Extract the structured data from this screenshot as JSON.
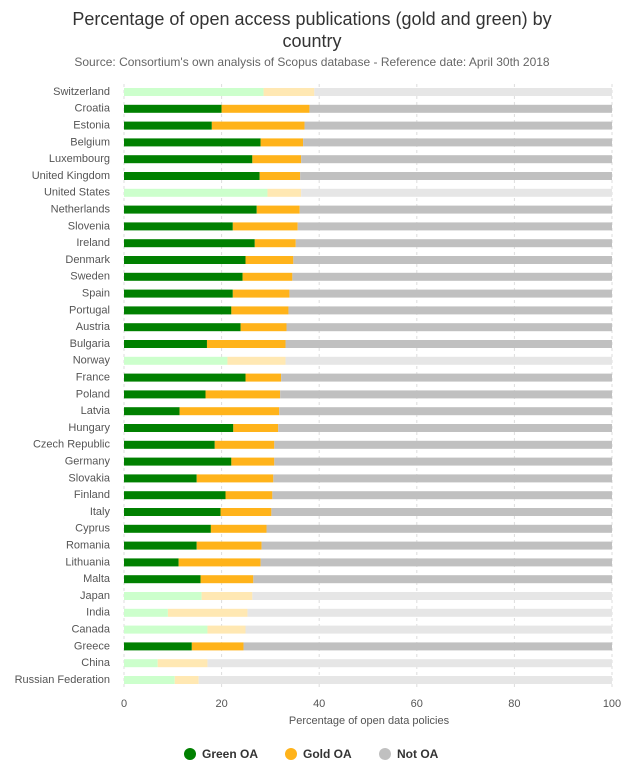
{
  "chart_data": {
    "type": "stacked-bar-horizontal",
    "title": "Percentage of open access publications (gold and green) by country",
    "subtitle": "Source: Consortium's own analysis of Scopus database - Reference date: April 30th 2018",
    "x_label": "Percentage of open data policies",
    "categories": [
      "Switzerland",
      "Croatia",
      "Estonia",
      "Belgium",
      "Luxembourg",
      "United Kingdom",
      "United States",
      "Netherlands",
      "Slovenia",
      "Ireland",
      "Denmark",
      "Sweden",
      "Spain",
      "Portugal",
      "Austria",
      "Bulgaria",
      "Norway",
      "France",
      "Poland",
      "Latvia",
      "Hungary",
      "Czech Republic",
      "Germany",
      "Slovakia",
      "Finland",
      "Italy",
      "Cyprus",
      "Romania",
      "Lithuania",
      "Malta",
      "Japan",
      "India",
      "Canada",
      "Greece",
      "China",
      "Russian Federation"
    ],
    "series": [
      {
        "name": "Green OA",
        "color": "#008000",
        "values": [
          28.6,
          20.0,
          18.0,
          28.0,
          26.3,
          27.8,
          29.4,
          27.2,
          22.3,
          26.8,
          24.9,
          24.3,
          22.3,
          22.0,
          23.9,
          17.0,
          21.2,
          24.9,
          16.7,
          11.4,
          22.4,
          18.6,
          22.0,
          14.9,
          20.8,
          19.8,
          17.8,
          14.9,
          11.2,
          15.7,
          15.9,
          9.0,
          17.1,
          13.9,
          6.9,
          10.4
        ],
        "colors": [
          "#ccffcc",
          "#008000",
          "#008000",
          "#008000",
          "#008000",
          "#008000",
          "#ccffcc",
          "#008000",
          "#008000",
          "#008000",
          "#008000",
          "#008000",
          "#008000",
          "#008000",
          "#008000",
          "#008000",
          "#ccffcc",
          "#008000",
          "#008000",
          "#008000",
          "#008000",
          "#008000",
          "#008000",
          "#008000",
          "#008000",
          "#008000",
          "#008000",
          "#008000",
          "#008000",
          "#008000",
          "#ccffcc",
          "#ccffcc",
          "#ccffcc",
          "#008000",
          "#ccffcc",
          "#ccffcc"
        ]
      },
      {
        "name": "Gold OA",
        "color": "#ffb31a",
        "values": [
          10.4,
          18.0,
          19.0,
          8.7,
          10.0,
          8.3,
          6.9,
          8.8,
          13.3,
          8.4,
          9.8,
          10.2,
          11.6,
          11.7,
          9.4,
          16.1,
          11.9,
          7.3,
          15.3,
          20.4,
          9.2,
          12.2,
          8.8,
          15.7,
          9.6,
          10.4,
          11.4,
          13.3,
          16.8,
          10.8,
          10.4,
          16.3,
          7.8,
          10.6,
          10.2,
          4.9
        ],
        "colors": [
          "#ffe8b3",
          "#ffb31a",
          "#ffb31a",
          "#ffb31a",
          "#ffb31a",
          "#ffb31a",
          "#ffe8b3",
          "#ffb31a",
          "#ffb31a",
          "#ffb31a",
          "#ffb31a",
          "#ffb31a",
          "#ffb31a",
          "#ffb31a",
          "#ffb31a",
          "#ffb31a",
          "#ffe8b3",
          "#ffb31a",
          "#ffb31a",
          "#ffb31a",
          "#ffb31a",
          "#ffb31a",
          "#ffb31a",
          "#ffb31a",
          "#ffb31a",
          "#ffb31a",
          "#ffb31a",
          "#ffb31a",
          "#ffb31a",
          "#ffb31a",
          "#ffe8b3",
          "#ffe8b3",
          "#ffe8b3",
          "#ffb31a",
          "#ffe8b3",
          "#ffe8b3"
        ]
      },
      {
        "name": "Not OA",
        "color": "#c0c0c0",
        "values": [
          61.0,
          62.0,
          63.0,
          63.3,
          63.7,
          63.9,
          63.7,
          64.0,
          64.4,
          64.8,
          65.3,
          65.5,
          66.1,
          66.3,
          66.7,
          66.9,
          66.9,
          67.8,
          68.0,
          68.2,
          68.4,
          69.2,
          69.2,
          69.4,
          69.6,
          69.8,
          70.8,
          71.8,
          72.0,
          73.5,
          73.7,
          74.7,
          75.1,
          75.5,
          82.9,
          84.7
        ],
        "colors": [
          "#e6e6e6",
          "#c0c0c0",
          "#c0c0c0",
          "#c0c0c0",
          "#c0c0c0",
          "#c0c0c0",
          "#e6e6e6",
          "#c0c0c0",
          "#c0c0c0",
          "#c0c0c0",
          "#c0c0c0",
          "#c0c0c0",
          "#c0c0c0",
          "#c0c0c0",
          "#c0c0c0",
          "#c0c0c0",
          "#e6e6e6",
          "#c0c0c0",
          "#c0c0c0",
          "#c0c0c0",
          "#c0c0c0",
          "#c0c0c0",
          "#c0c0c0",
          "#c0c0c0",
          "#c0c0c0",
          "#c0c0c0",
          "#c0c0c0",
          "#c0c0c0",
          "#c0c0c0",
          "#c0c0c0",
          "#e6e6e6",
          "#e6e6e6",
          "#e6e6e6",
          "#c0c0c0",
          "#e6e6e6",
          "#e6e6e6"
        ]
      }
    ],
    "xlim": [
      0,
      100
    ],
    "xticks": [
      0,
      20,
      40,
      60,
      80,
      100
    ],
    "grid": true
  }
}
